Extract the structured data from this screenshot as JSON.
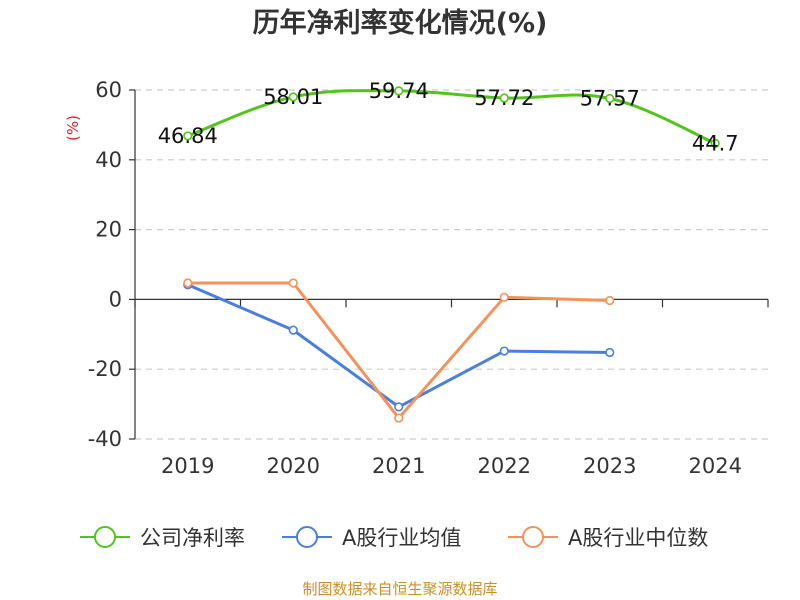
{
  "chart_data": {
    "type": "line",
    "title": "历年净利率变化情况(%)",
    "ylabel": "(%)",
    "ylim": [
      -40,
      60
    ],
    "yticks": [
      60,
      40,
      20,
      0,
      -20,
      -40
    ],
    "grid": true,
    "legend_position": "bottom",
    "categories": [
      "2019",
      "2020",
      "2021",
      "2022",
      "2023",
      "2024"
    ],
    "series": [
      {
        "name": "公司净利率",
        "color": "#52c41a",
        "values": [
          46.84,
          58.01,
          59.74,
          57.72,
          57.57,
          44.7
        ],
        "labels": [
          "46.84",
          "58.01",
          "59.74",
          "57.72",
          "57.57",
          "44.7"
        ]
      },
      {
        "name": "A股行业均值",
        "color": "#4a7fdb",
        "values": [
          4.2,
          -8.8,
          -30.8,
          -14.8,
          -15.2,
          null
        ]
      },
      {
        "name": "A股行业中位数",
        "color": "#f5915a",
        "values": [
          4.7,
          4.7,
          -34.0,
          0.6,
          -0.3,
          null
        ]
      }
    ],
    "source": "制图数据来自恒生聚源数据库"
  }
}
